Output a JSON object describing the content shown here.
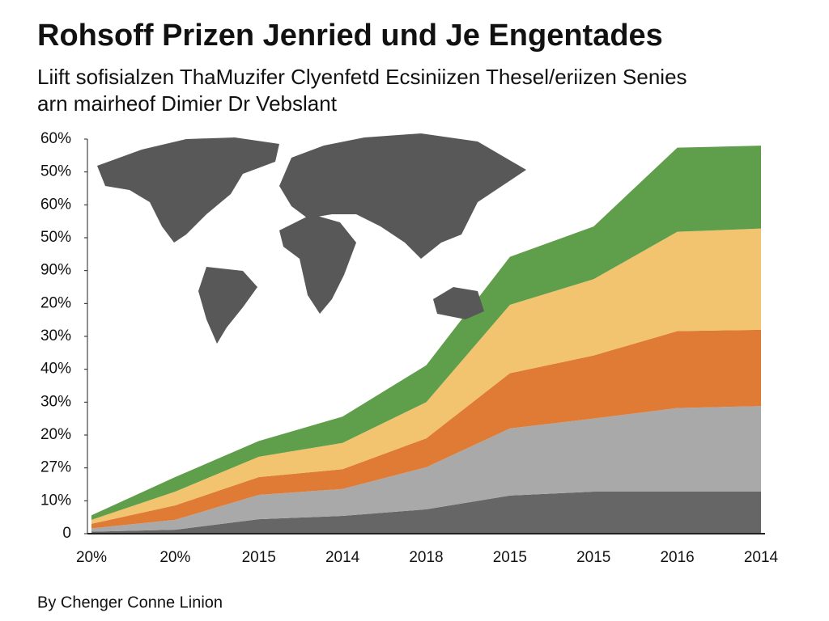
{
  "chart_data": {
    "type": "stacked-area",
    "title": "Rohsoff Prizen Jenried und Je Engentades",
    "subtitle": [
      "Liift sofisialzen ThaMuzifer Clyenfetd Ecsiniizen Thesel/eriizen Senies",
      "arn mairheof Dimier Dr Vebslant"
    ],
    "source": "By Chenger Conne Linion",
    "categories": [
      "20%",
      "20%",
      "2015",
      "2014",
      "2018",
      "2015",
      "2015",
      "2016",
      "2014"
    ],
    "series": [
      {
        "color": "#666666",
        "values": [
          0.3,
          0.6,
          2.2,
          2.7,
          3.7,
          5.8,
          6.4,
          6.4,
          6.4
        ]
      },
      {
        "color": "#a9a9a9",
        "values": [
          0.5,
          1.5,
          3.7,
          4.1,
          6.4,
          10.2,
          11.1,
          12.7,
          13.0
        ]
      },
      {
        "color": "#e07b35",
        "values": [
          0.7,
          2.2,
          2.7,
          3.0,
          4.4,
          8.4,
          9.6,
          11.7,
          11.6
        ]
      },
      {
        "color": "#f2c46f",
        "values": [
          0.6,
          2.1,
          3.1,
          4.0,
          5.5,
          10.4,
          11.6,
          15.1,
          15.4
        ]
      },
      {
        "color": "#5f9e4a",
        "values": [
          0.7,
          2.2,
          2.4,
          4.0,
          5.6,
          7.3,
          8.0,
          12.8,
          12.6
        ]
      }
    ],
    "ylim": [
      0,
      60
    ],
    "yticks": [
      0,
      {
        "value": 5,
        "label": "10%"
      },
      {
        "value": 10,
        "label": "27%"
      },
      {
        "value": 15,
        "label": "20%"
      },
      {
        "value": 20,
        "label": "30%"
      },
      {
        "value": 25,
        "label": "40%"
      },
      {
        "value": 30,
        "label": "30%"
      },
      {
        "value": 35,
        "label": "20%"
      },
      {
        "value": 40,
        "label": "90%"
      },
      {
        "value": 45,
        "label": "50%"
      },
      {
        "value": 50,
        "label": "60%"
      },
      {
        "value": 55,
        "label": "50%"
      },
      {
        "value": 60,
        "label": "60%"
      }
    ]
  }
}
